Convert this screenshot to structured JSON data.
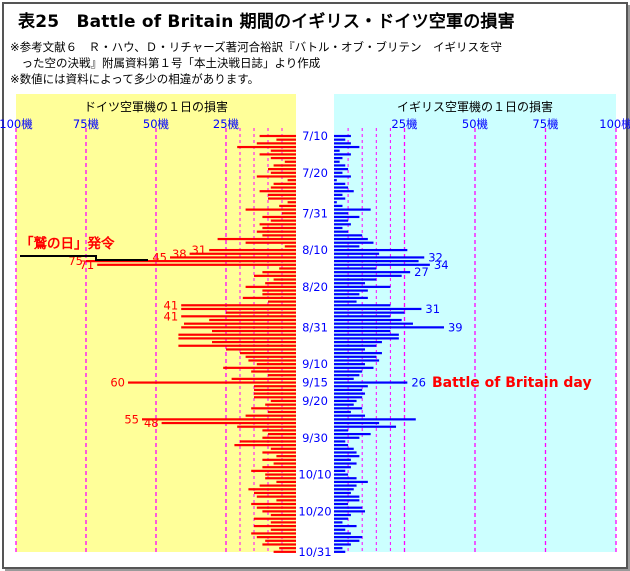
{
  "header": {
    "title": "表25　Battle of Britain 期間のイギリス・ドイツ空軍の損害",
    "note1": "※参考文献６　Ｒ・ハウ、Ｄ・リチャーズ著河合裕訳『バトル・オブ・ブリテン　イギリスを守",
    "note2": "　った空の決戦』附属資料第１号「本土決戦日誌」より作成",
    "note3": "※数値には資料によって多少の相違があります。"
  },
  "chart_data": {
    "type": "bar",
    "orientation": "horizontal",
    "panels": [
      {
        "title": "ドイツ空軍機の１日の損害",
        "bg": "#ffff99"
      },
      {
        "title": "イギリス空軍機の１日の損害",
        "bg": "#ccffff"
      }
    ],
    "scale_ticks": [
      "100機",
      "75機",
      "50機",
      "25機"
    ],
    "scale_ticks_right": [
      "25機",
      "50機",
      "75機",
      "100機"
    ],
    "tick_values": [
      100,
      75,
      50,
      25
    ],
    "tick_values_right": [
      25,
      50,
      75,
      100
    ],
    "gridlines_minor": [
      10,
      20
    ],
    "xlim": [
      0,
      100
    ],
    "date_labels": [
      "7/10",
      "7/20",
      "7/31",
      "8/10",
      "8/20",
      "8/31",
      "9/10",
      "9/15",
      "9/20",
      "9/30",
      "10/10",
      "10/20",
      "10/31"
    ],
    "date_label_index": [
      0,
      10,
      21,
      31,
      41,
      52,
      62,
      67,
      72,
      82,
      92,
      102,
      113
    ],
    "series": [
      {
        "name": "ドイツ空軍機の１日の損害",
        "color": "#ff0000",
        "values": [
          13,
          7,
          14,
          21,
          9,
          13,
          9,
          4,
          8,
          10,
          9,
          14,
          3,
          8,
          9,
          13,
          10,
          10,
          3,
          6,
          18,
          5,
          12,
          9,
          13,
          12,
          14,
          12,
          28,
          18,
          4,
          31,
          38,
          45,
          75,
          71,
          6,
          12,
          15,
          8,
          11,
          18,
          12,
          12,
          19,
          10,
          41,
          41,
          25,
          41,
          31,
          40,
          41,
          30,
          42,
          42,
          30,
          42,
          25,
          20,
          18,
          17,
          14,
          26,
          16,
          10,
          23,
          60,
          15,
          15,
          15,
          15,
          9,
          11,
          16,
          10,
          18,
          55,
          48,
          21,
          12,
          10,
          12,
          20,
          22,
          9,
          12,
          7,
          12,
          8,
          12,
          16,
          11,
          11,
          7,
          13,
          17,
          15,
          14,
          7,
          16,
          14,
          12,
          9,
          15,
          9,
          15,
          9,
          16,
          14,
          11,
          12,
          6,
          8
        ],
        "labels": [
          {
            "index": 31,
            "value": 31
          },
          {
            "index": 32,
            "value": 38
          },
          {
            "index": 33,
            "value": 45
          },
          {
            "index": 34,
            "value": 75
          },
          {
            "index": 35,
            "value": 71
          },
          {
            "index": 46,
            "value": 41
          },
          {
            "index": 49,
            "value": 41
          },
          {
            "index": 67,
            "value": 60
          },
          {
            "index": 77,
            "value": 55
          },
          {
            "index": 78,
            "value": 48
          }
        ]
      },
      {
        "name": "イギリス空軍機の１日の損害",
        "color": "#0000ff",
        "values": [
          6,
          4,
          6,
          9,
          2,
          6,
          3,
          2,
          4,
          5,
          3,
          6,
          1,
          4,
          5,
          7,
          3,
          4,
          1,
          3,
          13,
          5,
          9,
          5,
          6,
          3,
          5,
          10,
          12,
          14,
          9,
          26,
          16,
          32,
          30,
          34,
          15,
          27,
          24,
          15,
          11,
          20,
          12,
          9,
          12,
          8,
          20,
          31,
          25,
          20,
          24,
          28,
          39,
          20,
          23,
          23,
          17,
          15,
          11,
          17,
          15,
          16,
          11,
          14,
          10,
          9,
          7,
          26,
          12,
          10,
          11,
          10,
          8,
          7,
          10,
          6,
          11,
          29,
          16,
          22,
          5,
          13,
          9,
          4,
          5,
          7,
          8,
          9,
          6,
          8,
          6,
          4,
          5,
          8,
          12,
          8,
          7,
          6,
          9,
          9,
          5,
          10,
          11,
          6,
          5,
          3,
          8,
          4,
          6,
          10,
          9,
          6,
          3,
          4
        ],
        "labels": [
          {
            "index": 33,
            "value": 32
          },
          {
            "index": 35,
            "value": 34
          },
          {
            "index": 37,
            "value": 27
          },
          {
            "index": 47,
            "value": 31
          },
          {
            "index": 52,
            "value": 39
          },
          {
            "index": 67,
            "value": 26
          }
        ]
      }
    ],
    "annotations": [
      {
        "text": "「鷲の日」発令",
        "color": "#ff0000"
      },
      {
        "text": "Battle of Britain day",
        "color": "#ff0000"
      }
    ]
  }
}
